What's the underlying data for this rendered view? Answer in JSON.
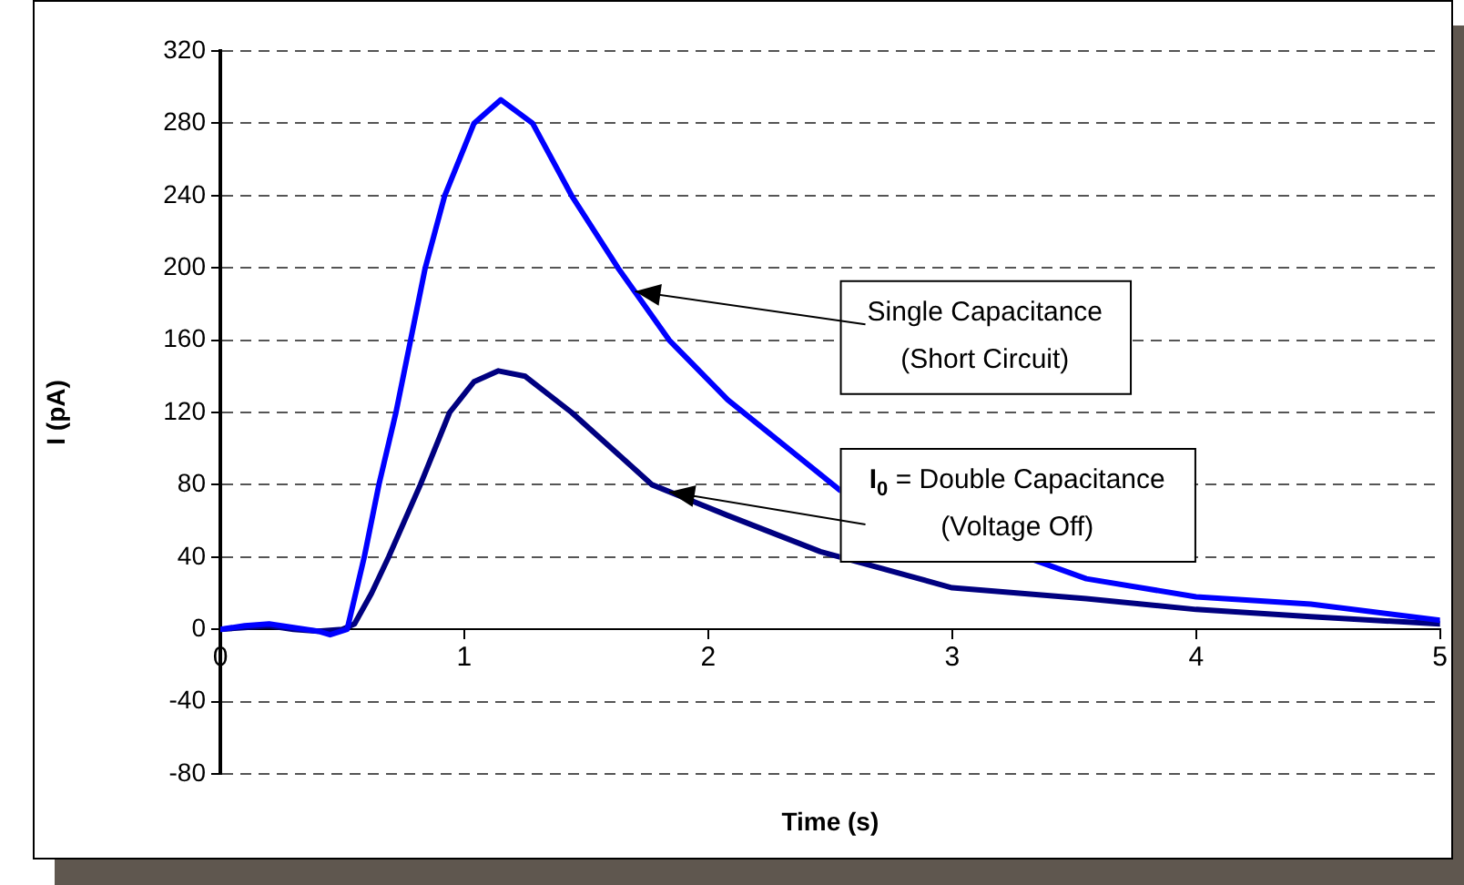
{
  "chart_data": {
    "type": "line",
    "xlabel": "Time (s)",
    "ylabel": "I (pA)",
    "xlim": [
      0,
      5
    ],
    "xticks": [
      0,
      1,
      2,
      3,
      4,
      5
    ],
    "ylim": [
      -80,
      320
    ],
    "yticks": [
      -80,
      -40,
      0,
      40,
      80,
      120,
      160,
      200,
      240,
      280,
      320
    ],
    "grid": "y",
    "legend": false,
    "marker": "none",
    "line_style": "solid",
    "series": [
      {
        "color": "#0000ff",
        "x": [
          0,
          0.1,
          0.2,
          0.3,
          0.4,
          0.45,
          0.52,
          0.59,
          0.65,
          0.72,
          0.78,
          0.84,
          0.92,
          1.04,
          1.15,
          1.28,
          1.44,
          1.63,
          1.84,
          2.08,
          2.54,
          3.55,
          4.0,
          4.47,
          5
        ],
        "values": [
          0,
          2,
          3,
          1,
          -1,
          -3,
          0,
          40,
          80,
          120,
          160,
          200,
          240,
          280,
          293,
          280,
          240,
          200,
          160,
          127,
          77,
          28,
          18,
          14,
          5
        ]
      },
      {
        "color": "#000080",
        "x": [
          0,
          0.1,
          0.2,
          0.3,
          0.4,
          0.5,
          0.55,
          0.62,
          0.69,
          0.82,
          0.94,
          1.04,
          1.14,
          1.25,
          1.44,
          1.77,
          2.08,
          2.46,
          3.0,
          3.55,
          4.0,
          4.47,
          5
        ],
        "values": [
          0,
          1,
          2,
          0,
          -1,
          0,
          3,
          20,
          40,
          80,
          120,
          137,
          143,
          140,
          120,
          80,
          63,
          43,
          23,
          17,
          11,
          7,
          3
        ]
      }
    ],
    "annotations": [
      {
        "text": "Single Capacitance\n(Short Circuit)",
        "x": 1.7,
        "y": 187
      },
      {
        "text": "I$_{0}$ = Double Capacitance\n(Voltage Off)",
        "x": 1.84,
        "y": 76
      }
    ]
  }
}
